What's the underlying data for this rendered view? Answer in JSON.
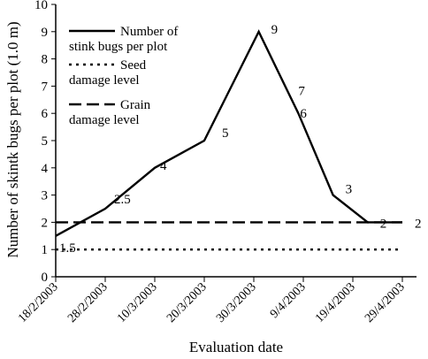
{
  "chart_data": {
    "type": "line",
    "title": "",
    "xlabel": "Evaluation date",
    "ylabel": "Number of skintk bugs per plot (1.0 m)",
    "ylim": [
      0,
      10
    ],
    "yticks": [
      0,
      1,
      2,
      3,
      4,
      5,
      6,
      7,
      8,
      9,
      10
    ],
    "x_tick_labels": [
      "18/2/2003",
      "28/2/2003",
      "10/3/2003",
      "20/3/2003",
      "30/3/2003",
      "9/4/2003",
      "19/4/2003",
      "29/4/2003"
    ],
    "grid": false,
    "legend_position": "top-left",
    "series": [
      {
        "name": "Number of stink bugs per plot",
        "style": "solid",
        "x": [
          "18/2/2003",
          "28/2/2003",
          "10/3/2003",
          "20/3/2003",
          "31/3/2003",
          "8/4/2003",
          "15/4/2003",
          "22/4/2003",
          "29/4/2003"
        ],
        "values": [
          1.5,
          2.5,
          4,
          5,
          9,
          6,
          3,
          2,
          2
        ],
        "point_labels": [
          "1.5",
          "2.5",
          "4",
          "5",
          "9",
          "6",
          "3",
          "2",
          "2"
        ]
      },
      {
        "name": "Seed damage level",
        "style": "dotted",
        "x": [
          "18/2/2003",
          "29/4/2003"
        ],
        "values": [
          1,
          1
        ]
      },
      {
        "name": "Grain damage level",
        "style": "dashed",
        "x": [
          "18/2/2003",
          "29/4/2003"
        ],
        "values": [
          2,
          2
        ]
      }
    ],
    "annotations": [
      {
        "text": "7",
        "x": "8/4/2003",
        "y": 7
      }
    ],
    "colors": {
      "line": "#000000",
      "background": "#ffffff"
    }
  }
}
